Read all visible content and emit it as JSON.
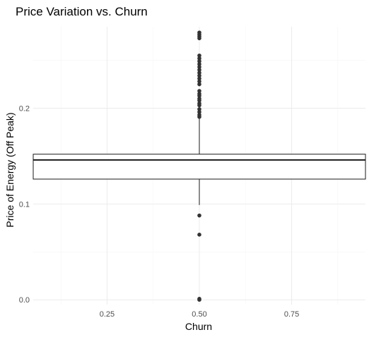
{
  "chart_data": {
    "type": "boxplot",
    "title": "Price Variation vs. Churn",
    "xlabel": "Churn",
    "ylabel": "Price of Energy (Off Peak)",
    "x_ticks": [
      {
        "value": 0.25,
        "label": "0.25"
      },
      {
        "value": 0.5,
        "label": "0.50"
      },
      {
        "value": 0.75,
        "label": "0.75"
      }
    ],
    "y_ticks": [
      {
        "value": 0.0,
        "label": "0.0"
      },
      {
        "value": 0.1,
        "label": "0.1"
      },
      {
        "value": 0.2,
        "label": "0.2"
      }
    ],
    "xlim": [
      0.05,
      0.95
    ],
    "ylim": [
      -0.005,
      0.285
    ],
    "grid": true,
    "box": {
      "x_center": 0.5,
      "x_min": 0.05,
      "x_max": 0.95,
      "q1": 0.126,
      "median": 0.146,
      "q3": 0.152,
      "whisker_low": 0.099,
      "whisker_high": 0.19
    },
    "outliers": [
      0.0,
      0.001,
      0.068,
      0.088,
      0.191,
      0.193,
      0.196,
      0.199,
      0.203,
      0.205,
      0.208,
      0.21,
      0.213,
      0.215,
      0.218,
      0.225,
      0.228,
      0.231,
      0.234,
      0.237,
      0.24,
      0.243,
      0.246,
      0.249,
      0.252,
      0.255,
      0.273,
      0.275,
      0.277,
      0.279
    ],
    "colors": {
      "box_line": "#1a1a1a",
      "outlier": "#333333",
      "grid_major": "#ebebeb",
      "grid_minor": "#f5f5f5",
      "background": "#ffffff"
    }
  }
}
